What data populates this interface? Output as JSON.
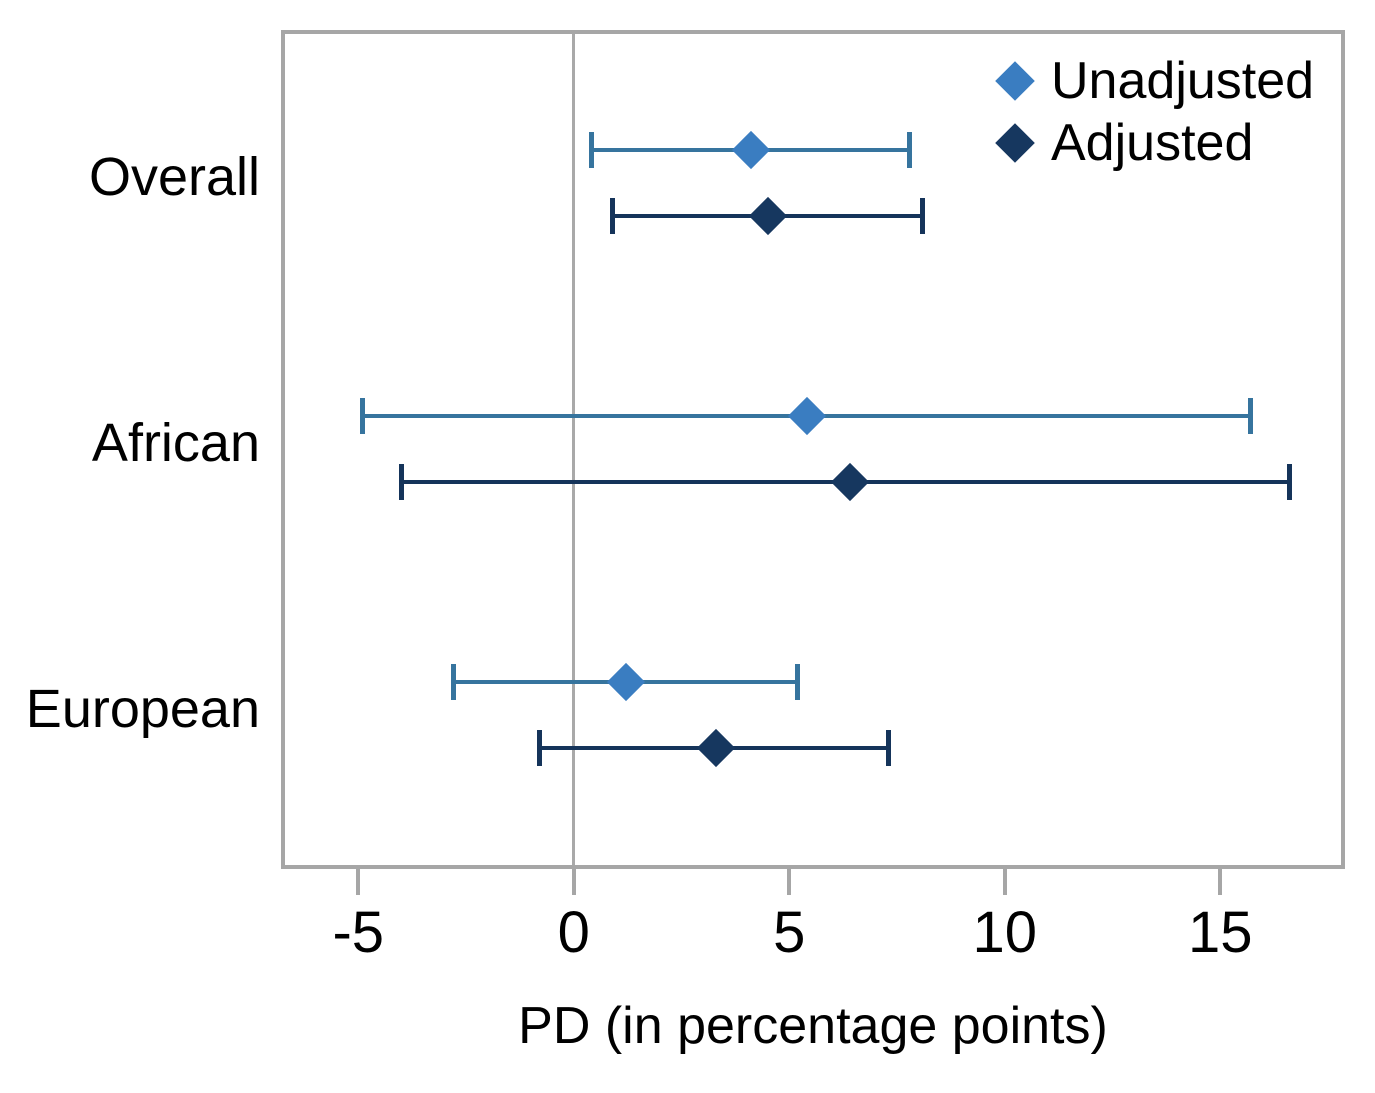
{
  "figure": {
    "xlabel": "PD (in percentage points)"
  },
  "legend": {
    "items": [
      {
        "label": "Unadjusted",
        "series": "unadjusted"
      },
      {
        "label": "Adjusted",
        "series": "adjusted"
      }
    ]
  },
  "colors": {
    "unadjusted_marker": "#3a7dc1",
    "unadjusted_line": "#36749e",
    "adjusted_marker": "#16375f",
    "adjusted_line": "#15345a",
    "axis_gray": "#a6a6a6",
    "ref_line_gray": "#a9a9a9",
    "text": "#000000"
  },
  "chart_data": {
    "type": "scatter",
    "subtype": "forest-dot-whisker",
    "title": "",
    "xlabel": "PD (in percentage points)",
    "ylabel": "",
    "categories": [
      "Overall",
      "African",
      "European"
    ],
    "x_ticks": [
      -5,
      0,
      5,
      10,
      15
    ],
    "xlim": [
      -6.7,
      17.8
    ],
    "ref_line_x": 0,
    "grid": false,
    "legend_position": "top-right-inside",
    "marker": "diamond",
    "series": [
      {
        "name": "Unadjusted",
        "estimates": [
          4.1,
          5.4,
          1.2
        ],
        "ci_low": [
          0.4,
          -4.9,
          -2.8
        ],
        "ci_high": [
          7.8,
          15.7,
          5.2
        ]
      },
      {
        "name": "Adjusted",
        "estimates": [
          4.5,
          6.4,
          3.3
        ],
        "ci_low": [
          0.9,
          -4.0,
          -0.8
        ],
        "ci_high": [
          8.1,
          16.6,
          7.3
        ]
      }
    ]
  }
}
